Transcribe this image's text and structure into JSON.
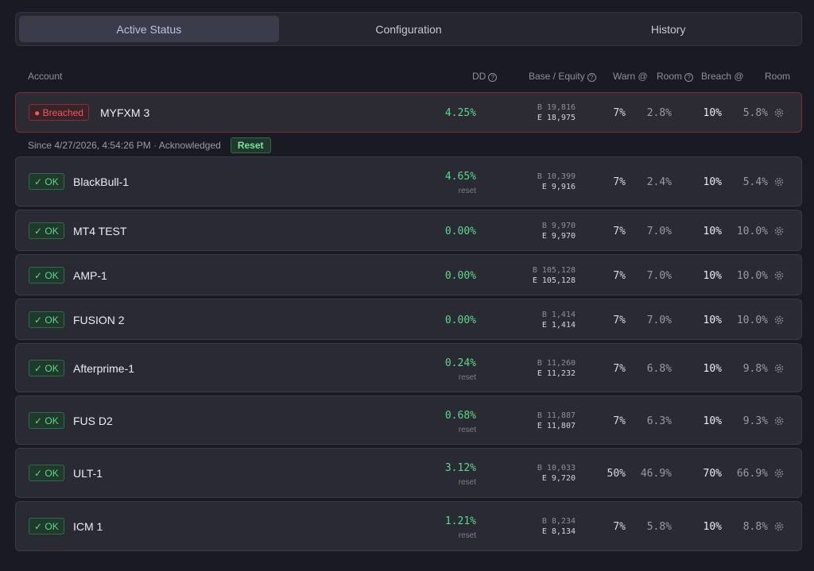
{
  "tabs": [
    {
      "label": "Active Status",
      "active": true
    },
    {
      "label": "Configuration",
      "active": false
    },
    {
      "label": "History",
      "active": false
    }
  ],
  "columns": {
    "account": "Account",
    "dd": "DD",
    "base_equity": "Base / Equity",
    "warn": "Warn @",
    "room1": "Room",
    "breach": "Breach @",
    "room2": "Room"
  },
  "breached_info": {
    "text": "Since 4/27/2026, 4:54:26 PM · Acknowledged",
    "reset_label": "Reset"
  },
  "accounts": [
    {
      "status": "● Breached",
      "state": "breached",
      "name": "MYFXM 3",
      "dd": "4.25%",
      "reset": "",
      "base": "B 19,816",
      "equity": "E 18,975",
      "warn": "7%",
      "room1": "2.8%",
      "breach": "10%",
      "room2": "5.8%"
    },
    {
      "status": "✓ OK",
      "state": "ok",
      "name": "BlackBull-1",
      "dd": "4.65%",
      "reset": "reset",
      "base": "B 10,399",
      "equity": "E 9,916",
      "warn": "7%",
      "room1": "2.4%",
      "breach": "10%",
      "room2": "5.4%"
    },
    {
      "status": "✓ OK",
      "state": "ok",
      "name": "MT4 TEST",
      "dd": "0.00%",
      "reset": "",
      "base": "B 9,970",
      "equity": "E 9,970",
      "warn": "7%",
      "room1": "7.0%",
      "breach": "10%",
      "room2": "10.0%"
    },
    {
      "status": "✓ OK",
      "state": "ok",
      "name": "AMP-1",
      "dd": "0.00%",
      "reset": "",
      "base": "B 105,128",
      "equity": "E 105,128",
      "warn": "7%",
      "room1": "7.0%",
      "breach": "10%",
      "room2": "10.0%"
    },
    {
      "status": "✓ OK",
      "state": "ok",
      "name": "FUSION 2",
      "dd": "0.00%",
      "reset": "",
      "base": "B 1,414",
      "equity": "E 1,414",
      "warn": "7%",
      "room1": "7.0%",
      "breach": "10%",
      "room2": "10.0%"
    },
    {
      "status": "✓ OK",
      "state": "ok",
      "name": "Afterprime-1",
      "dd": "0.24%",
      "reset": "reset",
      "base": "B 11,260",
      "equity": "E 11,232",
      "warn": "7%",
      "room1": "6.8%",
      "breach": "10%",
      "room2": "9.8%"
    },
    {
      "status": "✓ OK",
      "state": "ok",
      "name": "FUS D2",
      "dd": "0.68%",
      "reset": "reset",
      "base": "B 11,887",
      "equity": "E 11,807",
      "warn": "7%",
      "room1": "6.3%",
      "breach": "10%",
      "room2": "9.3%"
    },
    {
      "status": "✓ OK",
      "state": "ok",
      "name": "ULT-1",
      "dd": "3.12%",
      "reset": "reset",
      "base": "B 10,033",
      "equity": "E 9,720",
      "warn": "50%",
      "room1": "46.9%",
      "breach": "70%",
      "room2": "66.9%"
    },
    {
      "status": "✓ OK",
      "state": "ok",
      "name": "ICM 1",
      "dd": "1.21%",
      "reset": "reset",
      "base": "B 8,234",
      "equity": "E 8,134",
      "warn": "7%",
      "room1": "5.8%",
      "breach": "10%",
      "room2": "8.8%"
    }
  ],
  "icons": {
    "row_settings": "gear-icon",
    "help": "question-circle-icon"
  }
}
